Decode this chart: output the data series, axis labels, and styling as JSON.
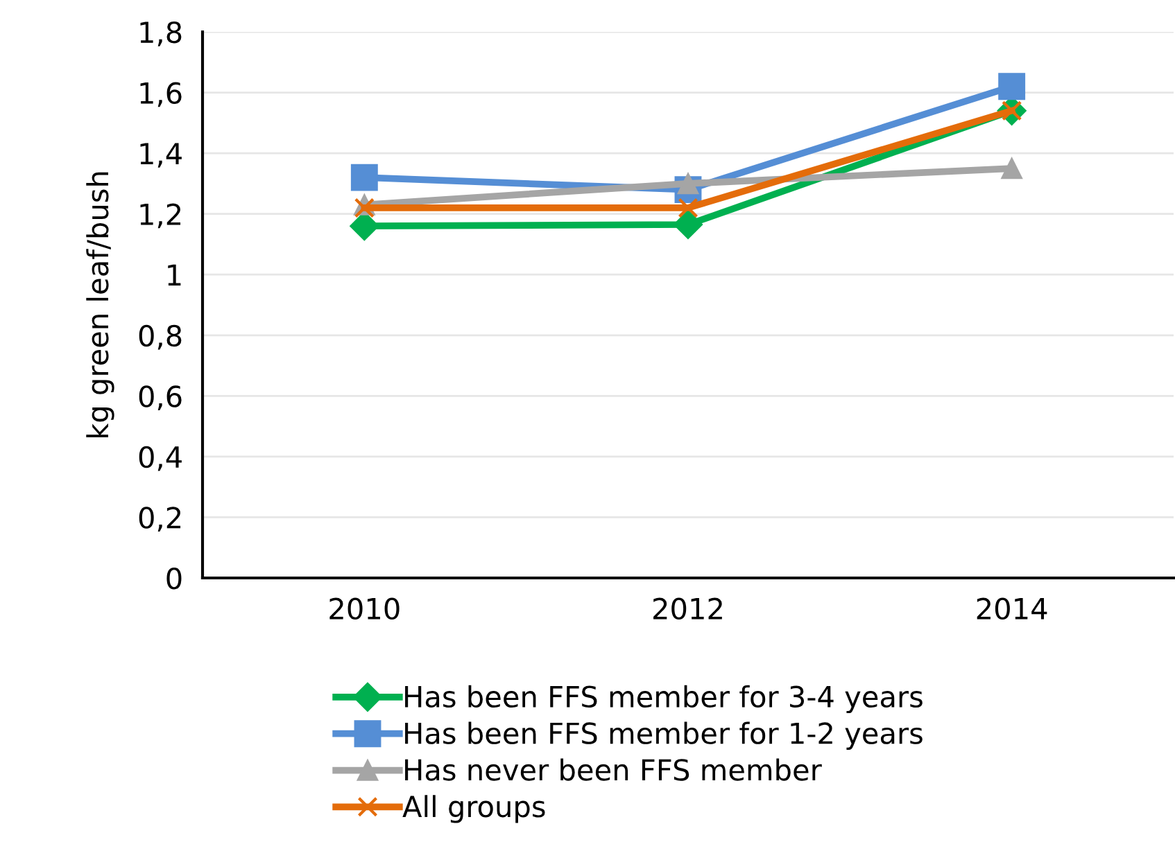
{
  "chart_data": {
    "type": "line",
    "ylabel": "kg green leaf/bush",
    "categories": [
      "2010",
      "2012",
      "2014"
    ],
    "series": [
      {
        "name": "Has been FFS member for 3-4 years",
        "color": "#00b050",
        "marker": "diamond",
        "values": [
          1.16,
          1.165,
          1.54
        ]
      },
      {
        "name": "Has been FFS member for 1-2 years",
        "color": "#558ed5",
        "marker": "square",
        "values": [
          1.32,
          1.28,
          1.62
        ]
      },
      {
        "name": "Has never been FFS member",
        "color": "#a5a5a5",
        "marker": "triangle",
        "values": [
          1.23,
          1.3,
          1.35
        ]
      },
      {
        "name": "All groups",
        "color": "#e46c0a",
        "marker": "cross",
        "values": [
          1.22,
          1.22,
          1.54
        ]
      }
    ],
    "ylim": [
      0,
      1.8
    ],
    "yticks": [
      0,
      {
        "value": 0.2,
        "label": "0,2"
      },
      {
        "value": 0.4,
        "label": "0,4"
      },
      {
        "value": 0.6,
        "label": "0,6"
      },
      {
        "value": 0.8,
        "label": "0,8"
      },
      1,
      {
        "value": 1.2,
        "label": "1,2"
      },
      {
        "value": 1.4,
        "label": "1,4"
      },
      {
        "value": 1.6,
        "label": "1,6"
      },
      {
        "value": 1.8,
        "label": "1,8"
      }
    ],
    "grid": "y",
    "legend": "bottom",
    "line_style": "solid"
  }
}
